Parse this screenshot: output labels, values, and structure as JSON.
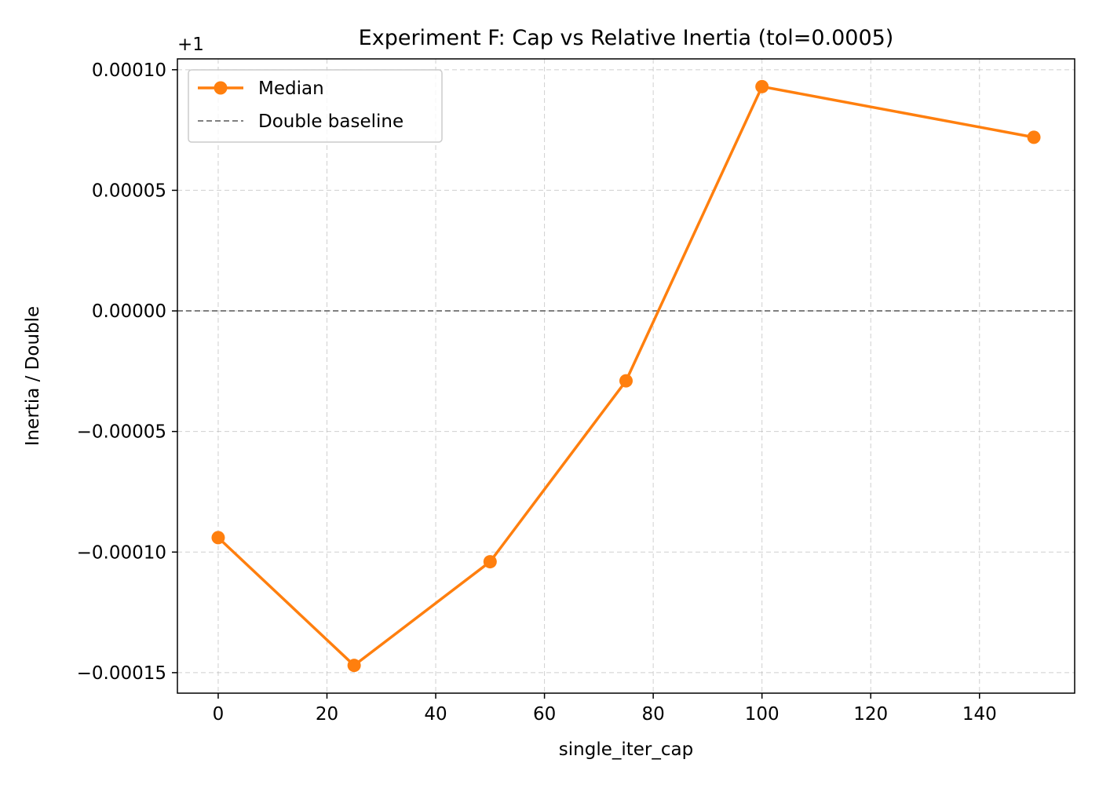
{
  "chart_data": {
    "type": "line",
    "title": "Experiment F: Cap vs Relative Inertia (tol=0.0005)",
    "xlabel": "single_iter_cap",
    "ylabel": "Inertia / Double",
    "offset_label": "+1",
    "xlim": [
      -7.5,
      157.5
    ],
    "ylim": [
      -0.0001585,
      0.0001045
    ],
    "xticks": [
      0,
      20,
      40,
      60,
      80,
      100,
      120,
      140
    ],
    "xtick_labels": [
      "0",
      "20",
      "40",
      "60",
      "80",
      "100",
      "120",
      "140"
    ],
    "yticks": [
      0.0001,
      5e-05,
      0,
      -5e-05,
      -0.0001,
      -0.00015
    ],
    "ytick_labels": [
      "0.00010",
      "0.00005",
      "0.00000",
      "−0.00005",
      "−0.00010",
      "−0.00015"
    ],
    "grid": true,
    "legend_position": "upper-left",
    "series": [
      {
        "name": "Median",
        "color": "#ff7f0e",
        "x": [
          0,
          25,
          50,
          75,
          100,
          150
        ],
        "y": [
          -9.4e-05,
          -0.000147,
          -0.000104,
          -2.9e-05,
          9.3e-05,
          7.2e-05
        ]
      }
    ],
    "reference_lines": [
      {
        "name": "Double baseline",
        "y": 0,
        "color": "#808080",
        "style": "dashed"
      }
    ]
  }
}
